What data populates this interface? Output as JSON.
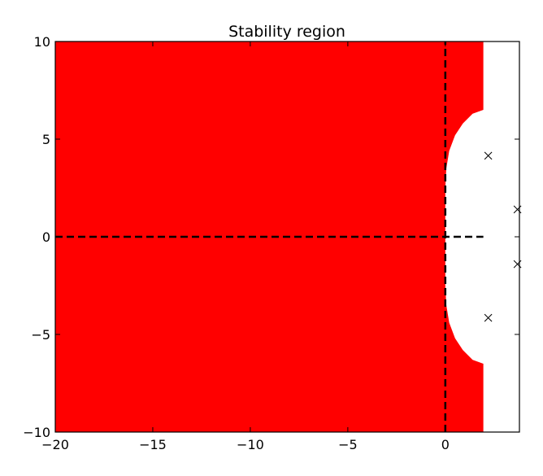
{
  "chart_data": {
    "type": "area",
    "title": "Stability region",
    "xlabel": "",
    "ylabel": "",
    "xlim": [
      -20,
      3.8
    ],
    "ylim": [
      -10,
      10
    ],
    "x_ticks": [
      -20,
      -15,
      -10,
      -5,
      0
    ],
    "x_tick_labels": [
      "−20",
      "−15",
      "−10",
      "−5",
      "0"
    ],
    "y_ticks": [
      10,
      5,
      0,
      -5,
      -10
    ],
    "y_tick_labels": [
      "10",
      "5",
      "0",
      "−5",
      "−10"
    ],
    "grid": false,
    "legend": "none",
    "stability_region": {
      "color": "#ff0000",
      "boundary": [
        [
          -20,
          10
        ],
        [
          1.95,
          10
        ],
        [
          1.95,
          6.5
        ],
        [
          1.4,
          6.3
        ],
        [
          0.9,
          5.8
        ],
        [
          0.5,
          5.2
        ],
        [
          0.2,
          4.4
        ],
        [
          0.05,
          3.5
        ],
        [
          0.0,
          2.5
        ],
        [
          0.0,
          -2.5
        ],
        [
          0.05,
          -3.5
        ],
        [
          0.2,
          -4.4
        ],
        [
          0.5,
          -5.2
        ],
        [
          0.9,
          -5.8
        ],
        [
          1.4,
          -6.3
        ],
        [
          1.95,
          -6.5
        ],
        [
          1.95,
          -10
        ],
        [
          -20,
          -10
        ]
      ]
    },
    "axes_lines": {
      "style": "dashed",
      "color": "#000000",
      "horizontal": {
        "y": 0,
        "x_from": -20,
        "x_to": 1.95
      },
      "vertical": {
        "x": 0,
        "y_from": -10,
        "y_to": 10
      }
    },
    "markers": {
      "symbol": "x",
      "color": "#000000",
      "points": [
        {
          "x": 2.2,
          "y": 4.15
        },
        {
          "x": 2.2,
          "y": -4.15
        },
        {
          "x": 3.7,
          "y": 1.4
        },
        {
          "x": 3.7,
          "y": -1.4
        }
      ]
    }
  }
}
